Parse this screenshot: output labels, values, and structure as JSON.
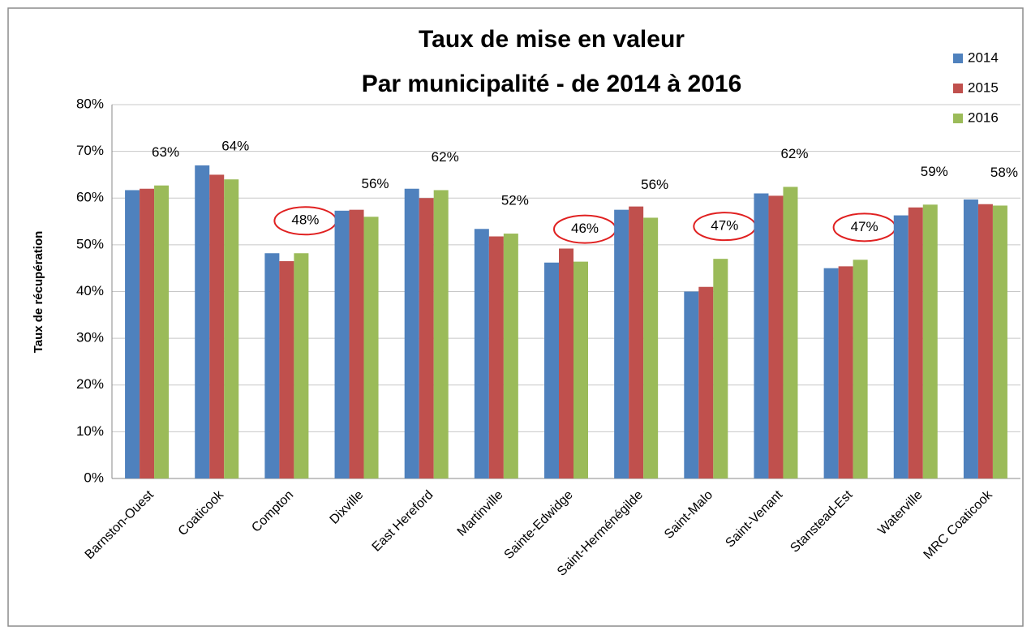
{
  "chart_data": {
    "type": "bar",
    "title": "Taux de mise en valeur",
    "subtitle": "Par municipalité - de 2014 à 2016",
    "y_label": "Taux de récupération",
    "categories": [
      "Barnston-Ouest",
      "Coaticook",
      "Compton",
      "Dixville",
      "East Hereford",
      "Martinville",
      "Sainte-Edwidge",
      "Saint-Herménégilde",
      "Saint-Malo",
      "Saint-Venant",
      "Stanstead-Est",
      "Waterville",
      "MRC Coaticook"
    ],
    "series": [
      {
        "name": "2014",
        "color": "#4f81bd",
        "values": [
          61.7,
          67,
          48.2,
          57.3,
          62,
          53.4,
          46.2,
          57.5,
          40,
          61,
          45,
          56.3,
          59.7
        ]
      },
      {
        "name": "2015",
        "color": "#c0504d",
        "values": [
          62,
          65,
          46.5,
          57.5,
          60,
          51.8,
          49.2,
          58.2,
          41,
          60.5,
          45.4,
          58,
          58.7
        ]
      },
      {
        "name": "2016",
        "color": "#9bbb59",
        "values": [
          62.7,
          64,
          48.2,
          56,
          61.7,
          52.4,
          46.4,
          55.8,
          47,
          62.4,
          46.8,
          58.6,
          58.4
        ],
        "value_labels": [
          "63%",
          "64%",
          "48%",
          "56%",
          "62%",
          "52%",
          "46%",
          "56%",
          "47%",
          "62%",
          "47%",
          "59%",
          "58%"
        ]
      }
    ],
    "circled_labels": [
      2,
      6,
      8,
      10
    ],
    "ylim": [
      0,
      80
    ],
    "yticks": [
      {
        "value": 0,
        "label": "0%"
      },
      {
        "value": 10,
        "label": "10%"
      },
      {
        "value": 20,
        "label": "20%"
      },
      {
        "value": 30,
        "label": "30%"
      },
      {
        "value": 40,
        "label": "40%"
      },
      {
        "value": 50,
        "label": "50%"
      },
      {
        "value": 60,
        "label": "60%"
      },
      {
        "value": 70,
        "label": "70%"
      },
      {
        "value": 80,
        "label": "80%"
      }
    ],
    "grid": true,
    "legend": "top-right"
  }
}
